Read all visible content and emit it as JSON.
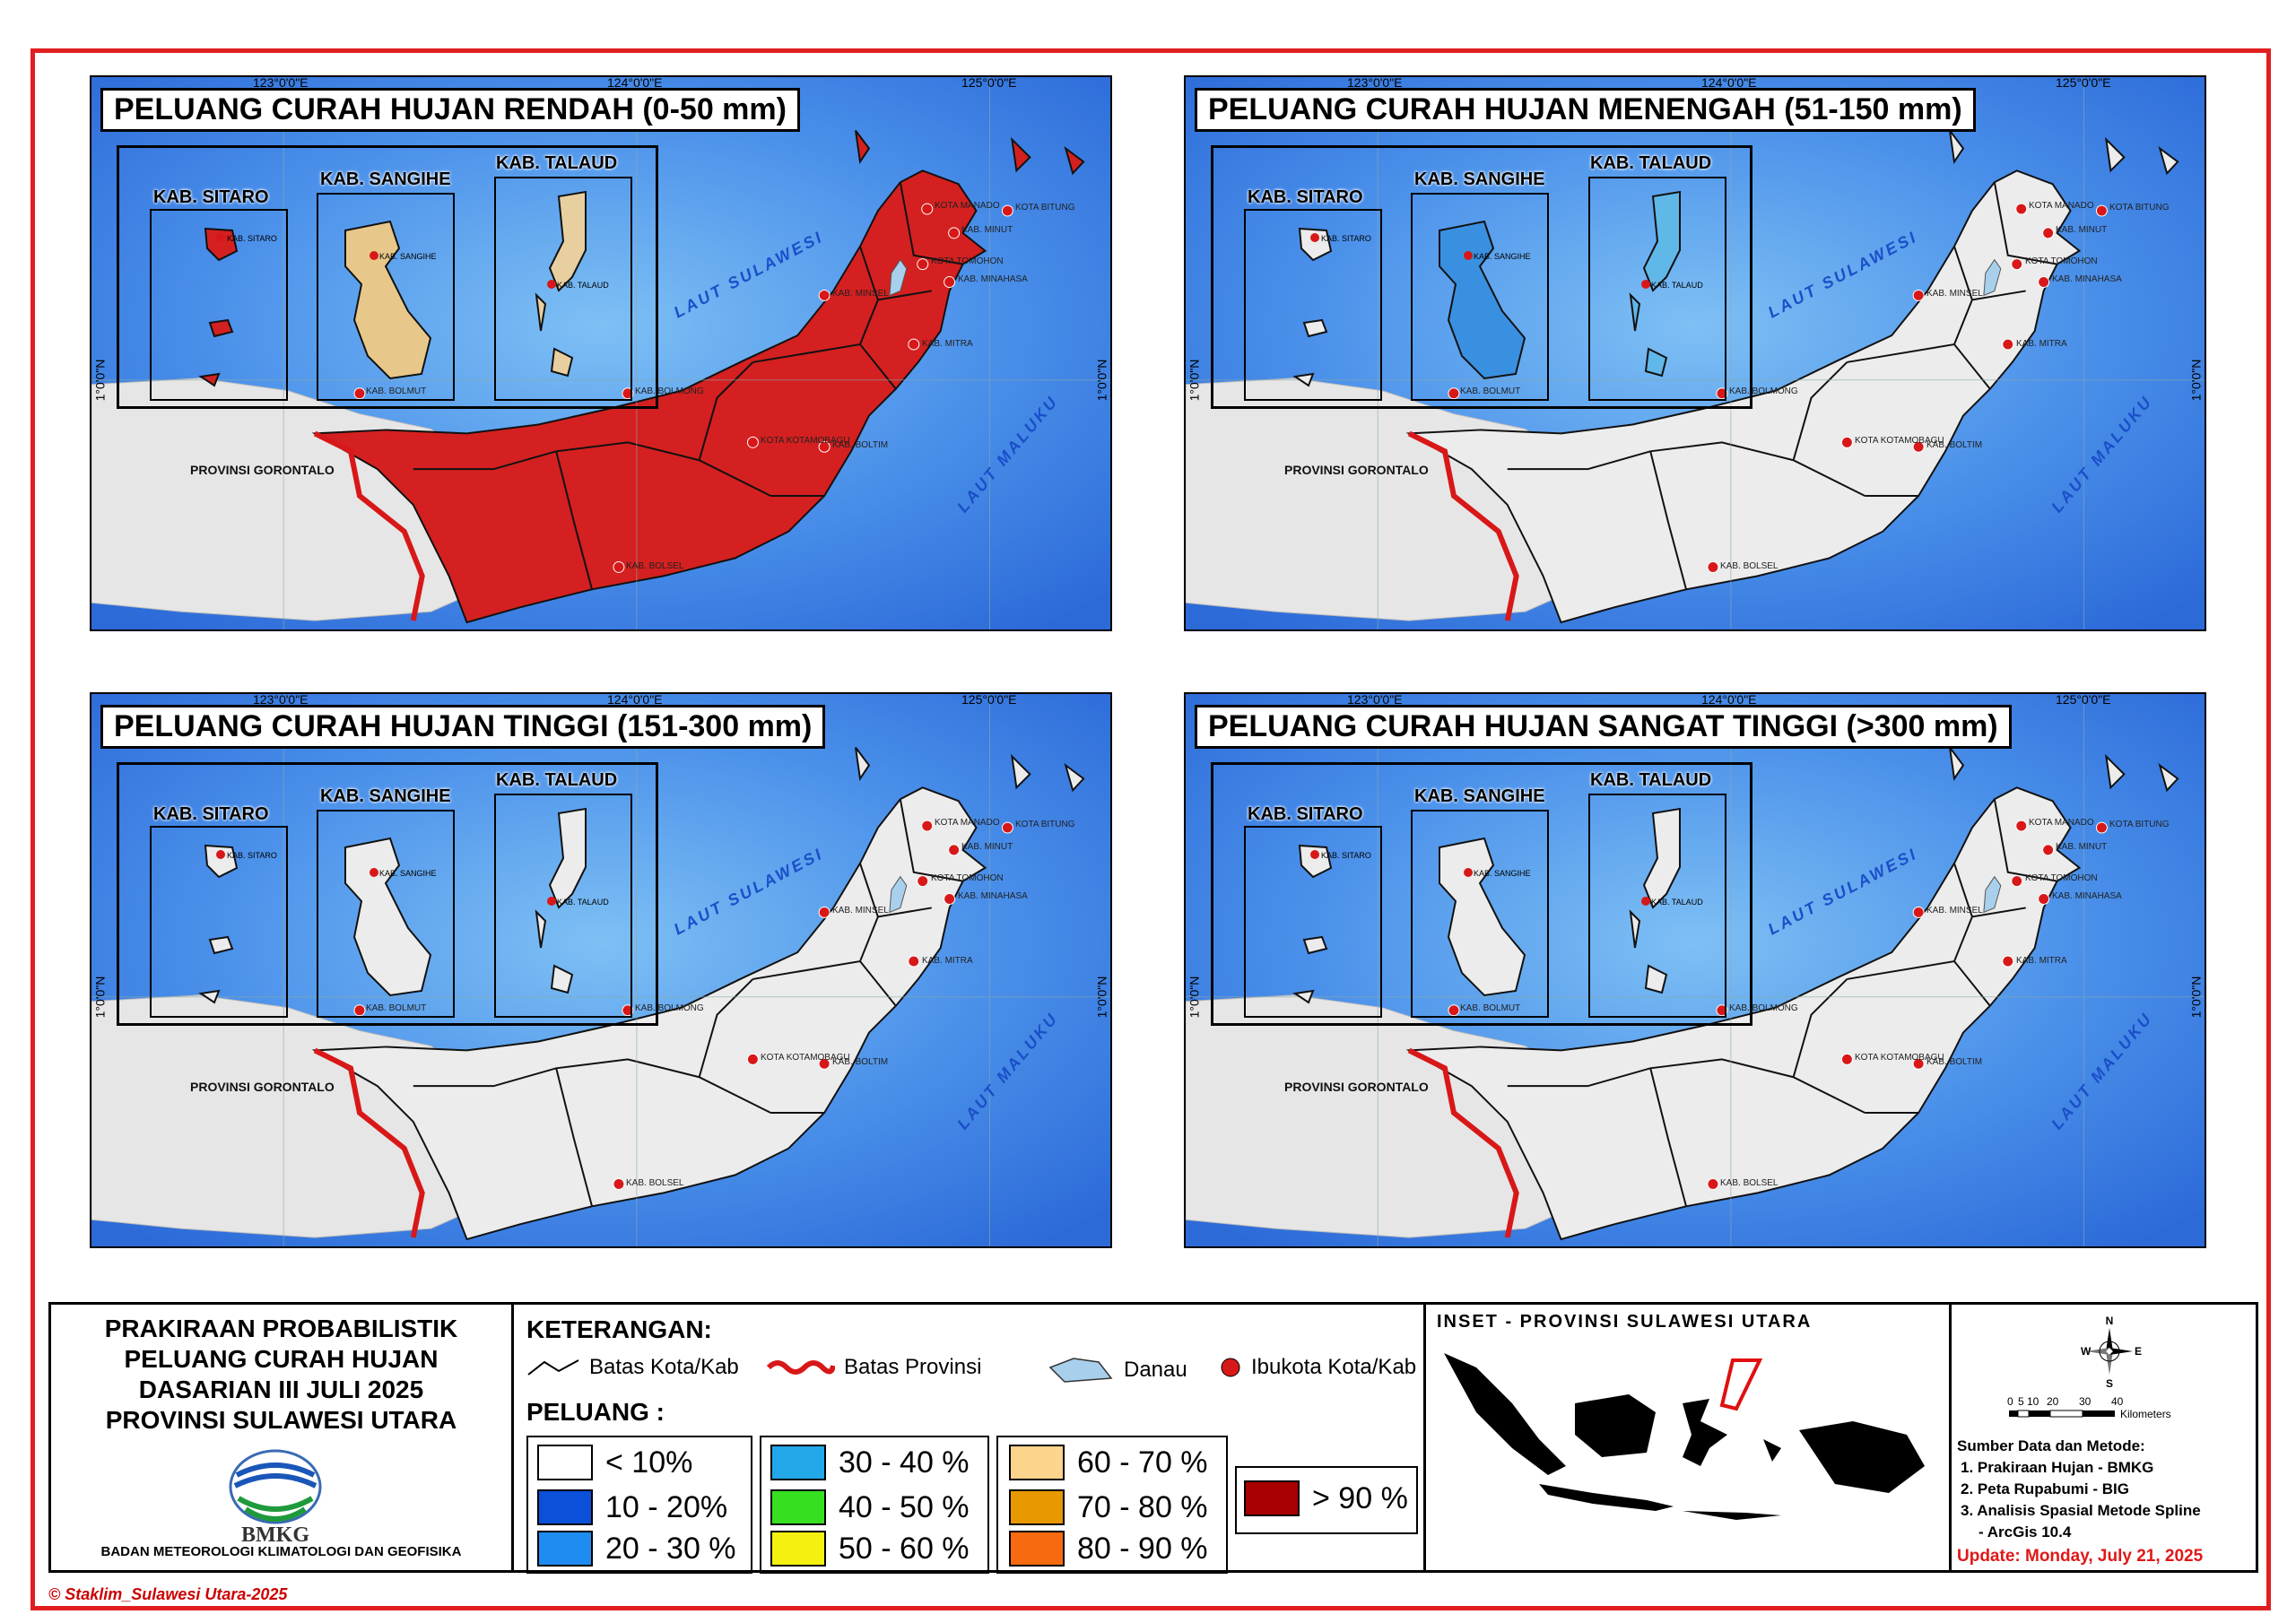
{
  "panels": [
    {
      "title": "PELUANG CURAH HUJAN RENDAH (0-50 mm)",
      "land_fill": "#d42020",
      "lake_fill": "#a8d0ec",
      "sub_fill": [
        "#d42020",
        "#e8c88a",
        "#e8cfa0"
      ]
    },
    {
      "title": "PELUANG CURAH HUJAN MENENGAH (51-150 mm)",
      "land_fill": "#ececec",
      "lake_fill": "#a8d0ec",
      "sub_fill": [
        "#ececec",
        "#3a90e0",
        "#60b8e8"
      ]
    },
    {
      "title": "PELUANG CURAH HUJAN TINGGI (151-300 mm)",
      "land_fill": "#ececec",
      "lake_fill": "#a8d0ec",
      "sub_fill": [
        "#ececec",
        "#ececec",
        "#ececec"
      ]
    },
    {
      "title": "PELUANG CURAH HUJAN SANGAT TINGGI (>300 mm)",
      "land_fill": "#ececec",
      "lake_fill": "#a8d0ec",
      "sub_fill": [
        "#ececec",
        "#ececec",
        "#ececec"
      ]
    }
  ],
  "inset_labels": {
    "sitaro": "KAB. SITARO",
    "sangihe": "KAB. SANGIHE",
    "talaud": "KAB. TALAUD"
  },
  "inset_places": {
    "sitaro": "KAB. SITARO",
    "sangihe": "KAB. SANGIHE",
    "talaud": "KAB. TALAUD"
  },
  "coords": {
    "lon1": "123°0'0\"E",
    "lon2": "124°0'0\"E",
    "lon3": "125°0'0\"E",
    "lat": "1°0'0\"N"
  },
  "places": {
    "manado": "KOTA MANADO",
    "minut": "KAB. MINUT",
    "bitung": "KOTA BITUNG",
    "tomohon": "KOTA TOMOHON",
    "minahasa": "KAB. MINAHASA",
    "minsel": "KAB. MINSEL",
    "mitra": "KAB. MITRA",
    "bolmut": "KAB. BOLMUT",
    "bolmong": "KAB. BOLMONG",
    "kotamobagu": "KOTA KOTAMOBAGU",
    "boltim": "KAB. BOLTIM",
    "bolsel": "KAB. BOLSEL"
  },
  "seas": {
    "sulawesi": "LAUT SULAWESI",
    "maluku": "LAUT MALUKU"
  },
  "province": "PROVINSI GORONTALO",
  "title_block": {
    "line1": "PRAKIRAAN PROBABILISTIK",
    "line2": "PELUANG CURAH HUJAN",
    "line3": "DASARIAN III JULI 2025",
    "line4": "PROVINSI SULAWESI UTARA",
    "logo_text": "BMKG",
    "agency": "BADAN METEOROLOGI KLIMATOLOGI DAN GEOFISIKA"
  },
  "legend": {
    "heading": "KETERANGAN:",
    "items": [
      {
        "label": "Batas Kota/Kab",
        "icon": "black-line-icon"
      },
      {
        "label": "Batas Provinsi",
        "icon": "red-line-icon"
      },
      {
        "label": "Danau",
        "icon": "lake-icon"
      },
      {
        "label": "Ibukota Kota/Kab",
        "icon": "red-dot-icon"
      }
    ],
    "peluang_heading": "PELUANG :",
    "classes": [
      {
        "label": "< 10%",
        "color": "#ffffff"
      },
      {
        "label": "10 - 20%",
        "color": "#0a50d8"
      },
      {
        "label": "20 - 30 %",
        "color": "#1e8cf0"
      },
      {
        "label": "30 - 40 %",
        "color": "#22a8e8"
      },
      {
        "label": "40 - 50 %",
        "color": "#36e020"
      },
      {
        "label": "50 - 60 %",
        "color": "#f4f010"
      },
      {
        "label": "60 - 70 %",
        "color": "#fcd48c"
      },
      {
        "label": "70 - 80 %",
        "color": "#e89800"
      },
      {
        "label": "80 - 90 %",
        "color": "#f86a10"
      },
      {
        "label": "> 90 %",
        "color": "#a80000"
      }
    ]
  },
  "inset_map": {
    "title": "INSET - PROVINSI SULAWESI UTARA"
  },
  "info": {
    "compass": {
      "n": "N",
      "e": "E",
      "s": "S",
      "w": "W"
    },
    "scale_ticks": [
      "0",
      "5",
      "10",
      "20",
      "30",
      "40"
    ],
    "scale_unit": "Kilometers",
    "sources_heading": "Sumber Data dan Metode:",
    "sources": [
      "1. Prakiraan Hujan - BMKG",
      "2. Peta Rupabumi - BIG",
      "3. Analisis Spasial Metode Spline",
      "- ArcGis 10.4"
    ],
    "update": "Update: Monday, July 21, 2025"
  },
  "copyright": "© Staklim_Sulawesi Utara-2025"
}
